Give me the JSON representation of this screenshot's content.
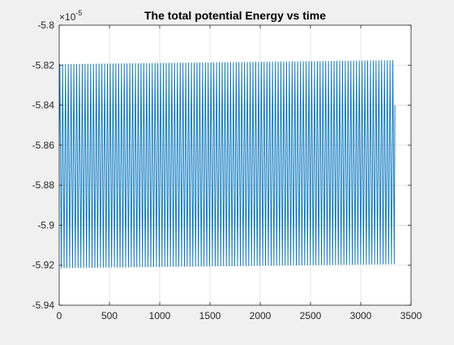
{
  "chart_data": {
    "type": "line",
    "title": "The total potential Energy vs time",
    "xlabel": "",
    "ylabel": "",
    "xlim": [
      0,
      3500
    ],
    "ylim": [
      -5.94,
      -5.8
    ],
    "y_multiplier": {
      "base": "10",
      "exponent": "-5"
    },
    "x_ticks": [
      "0",
      "500",
      "1000",
      "1500",
      "2000",
      "2500",
      "3000",
      "3500"
    ],
    "x_tick_values": [
      0,
      500,
      1000,
      1500,
      2000,
      2500,
      3000,
      3500
    ],
    "y_ticks": [
      "-5.8",
      "-5.82",
      "-5.84",
      "-5.86",
      "-5.88",
      "-5.9",
      "-5.92",
      "-5.94"
    ],
    "y_tick_values": [
      -5.8,
      -5.82,
      -5.84,
      -5.86,
      -5.88,
      -5.9,
      -5.92,
      -5.94
    ],
    "grid": true,
    "series": [
      {
        "color": "#0072bd",
        "oscillation_count": 120,
        "x_start": 0,
        "x_end": 3340,
        "start_value": -5.86,
        "end_value": -5.84,
        "peak_start": -5.8195,
        "peak_end": -5.8175,
        "trough_start": -5.9215,
        "trough_end": -5.9195
      }
    ]
  }
}
